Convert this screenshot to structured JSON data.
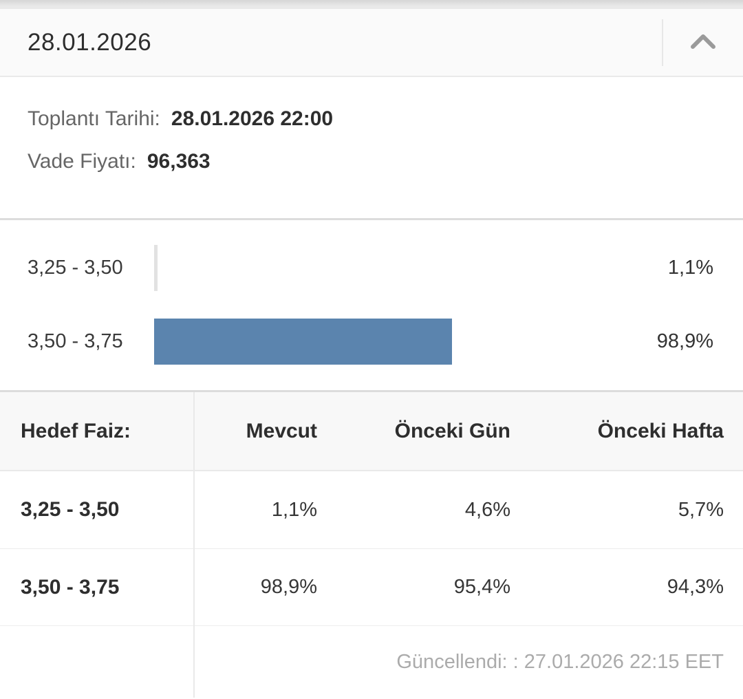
{
  "header": {
    "title": "28.01.2026"
  },
  "info": {
    "meeting_date_label": "Toplantı Tarihi:",
    "meeting_date_value": "28.01.2026 22:00",
    "future_price_label": "Vade Fiyatı:",
    "future_price_value": "96,363"
  },
  "chart_data": {
    "type": "bar",
    "orientation": "horizontal",
    "categories": [
      "3,25 - 3,50",
      "3,50 - 3,75"
    ],
    "values": [
      1.1,
      98.9
    ],
    "value_labels": [
      "1,1%",
      "98,9%"
    ],
    "xlim": [
      0,
      100
    ],
    "grid": false,
    "legend": false,
    "bar_colors": [
      "#e2e2e2",
      "#5b84ae"
    ]
  },
  "table": {
    "columns": [
      "Hedef Faiz:",
      "Mevcut",
      "Önceki Gün",
      "Önceki Hafta"
    ],
    "rows": [
      {
        "label": "3,25 - 3,50",
        "values": [
          "1,1%",
          "4,6%",
          "5,7%"
        ]
      },
      {
        "label": "3,50 - 3,75",
        "values": [
          "98,9%",
          "95,4%",
          "94,3%"
        ]
      }
    ]
  },
  "footer": {
    "updated_text": "Güncellendi: : 27.01.2026 22:15 EET"
  },
  "colors": {
    "accent_bar": "#5b84ae",
    "muted_bar": "#e2e2e2",
    "divider": "#dcdcdc",
    "header_bg": "#fafafa",
    "table_header_bg": "#f8f8f8"
  }
}
